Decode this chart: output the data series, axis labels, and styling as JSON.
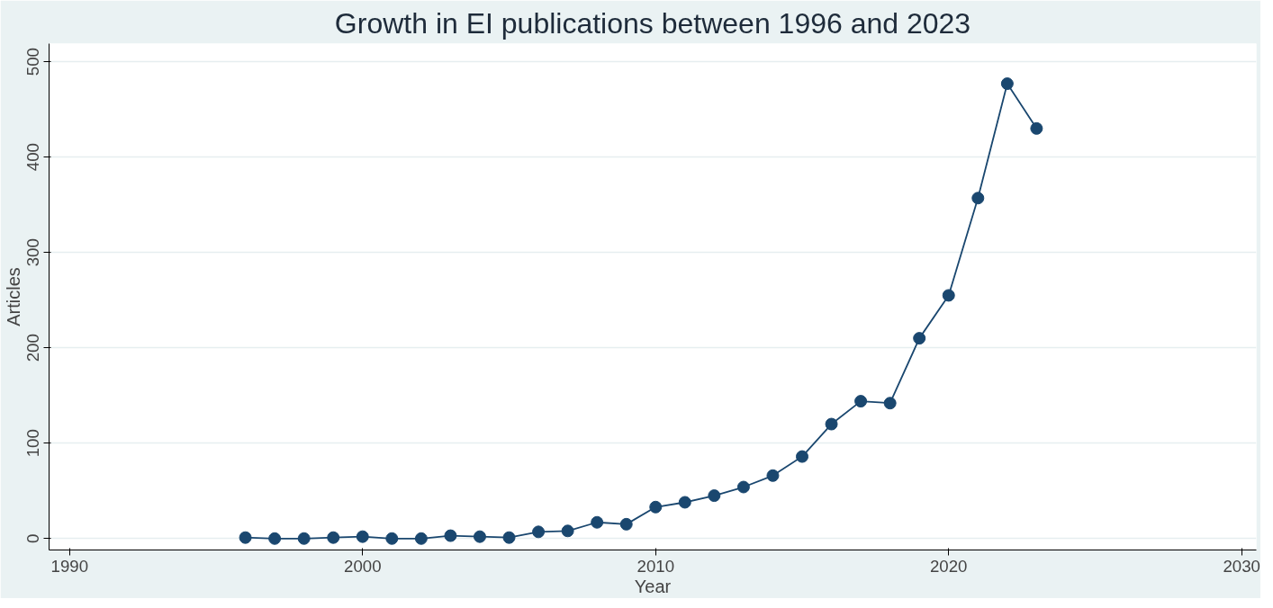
{
  "chart_data": {
    "type": "line",
    "title": "Growth in EI publications between 1996 and 2023",
    "xlabel": "Year",
    "ylabel": "Articles",
    "x": [
      1996,
      1997,
      1998,
      1999,
      2000,
      2001,
      2002,
      2003,
      2004,
      2005,
      2006,
      2007,
      2008,
      2009,
      2010,
      2011,
      2012,
      2013,
      2014,
      2015,
      2016,
      2017,
      2018,
      2019,
      2020,
      2021,
      2022,
      2023
    ],
    "series": [
      {
        "color": "#1a476f",
        "values": [
          1,
          0,
          0,
          1,
          2,
          0,
          0,
          3,
          2,
          1,
          7,
          8,
          17,
          15,
          33,
          38,
          45,
          54,
          66,
          86,
          120,
          144,
          142,
          210,
          255,
          357,
          477,
          430
        ]
      }
    ],
    "xlim": [
      1989.3,
      2030.5
    ],
    "xticks": [
      1990,
      2000,
      2010,
      2020,
      2030
    ],
    "ylim": [
      -12,
      519
    ],
    "yticks": [
      0,
      100,
      200,
      300,
      400,
      500
    ],
    "grid": "y",
    "marker": "circle",
    "line_style": "solid"
  }
}
